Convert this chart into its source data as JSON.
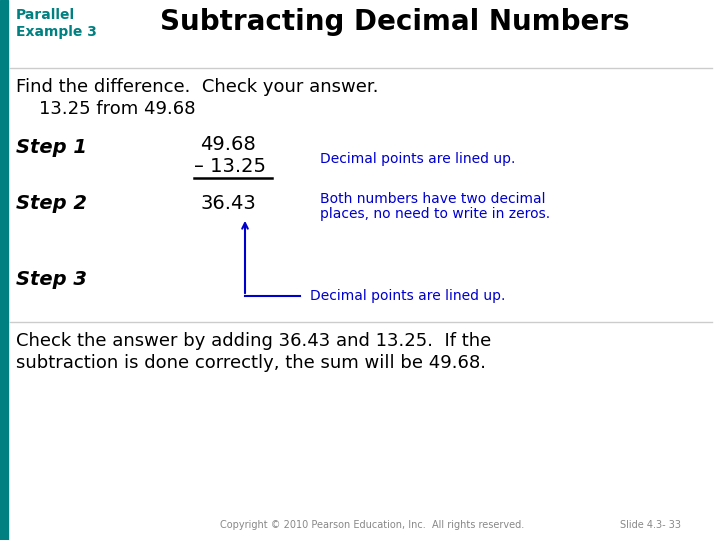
{
  "bg_color": "#ffffff",
  "parallel_label": "Parallel\nExample 3",
  "title": "Subtracting Decimal Numbers",
  "find_line1": "Find the difference.  Check your answer.",
  "find_line2": "    13.25 from 49.68",
  "step1_label": "Step 1",
  "step2_label": "Step 2",
  "step3_label": "Step 3",
  "num1": "49.68",
  "num2": "– 13.25",
  "result": "36.43",
  "note1": "Decimal points are lined up.",
  "note2_line1": "Both numbers have two decimal",
  "note2_line2": "places, no need to write in zeros.",
  "note3": "Decimal points are lined up.",
  "check_line1": "Check the answer by adding 36.43 and 13.25.  If the",
  "check_line2": "subtraction is done correctly, the sum will be 49.68.",
  "copyright": "Copyright © 2010 Pearson Education, Inc.  All rights reserved.",
  "slide_num": "Slide 4.3- 33",
  "teal_color": "#008080",
  "blue_color": "#0000cd",
  "black_color": "#000000",
  "gray_color": "#888888",
  "title_fontsize": 20,
  "parallel_fontsize": 10,
  "body_fontsize": 13,
  "step_fontsize": 14,
  "num_fontsize": 14,
  "note_fontsize": 10,
  "check_fontsize": 13,
  "footer_fontsize": 7
}
